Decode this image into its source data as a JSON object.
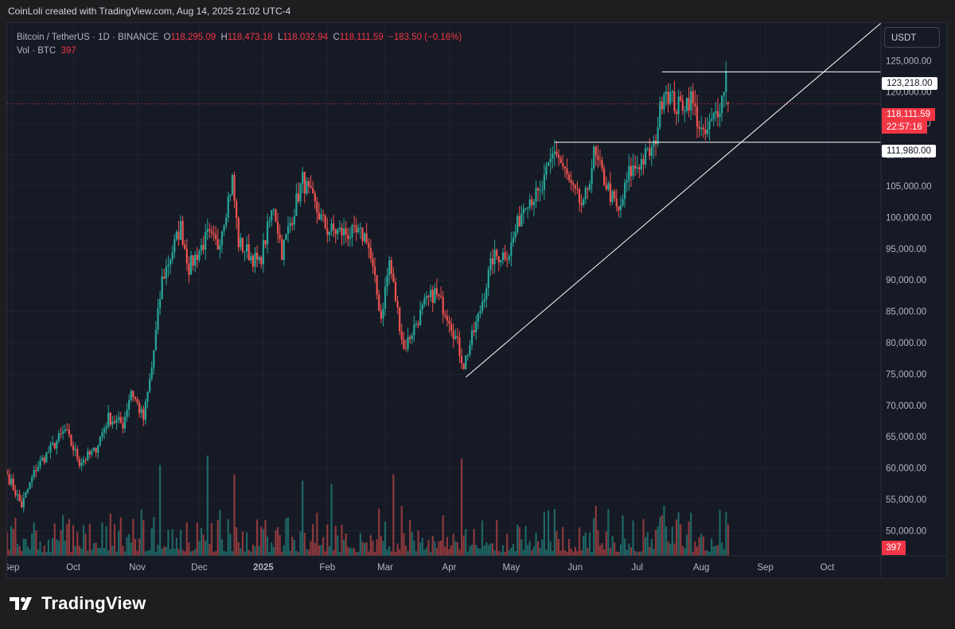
{
  "header": {
    "caption": "CoinLoli created with TradingView.com, Aug 14, 2025 21:02 UTC-4"
  },
  "legend": {
    "symbol": "Bitcoin / TetherUS · 1D · BINANCE",
    "open_label": "O",
    "open": "118,295.09",
    "high_label": "H",
    "high": "118,473.18",
    "low_label": "L",
    "low": "118,032.94",
    "close_label": "C",
    "close": "118,111.59",
    "change": "−183.50 (−0.16%)",
    "vol_label": "Vol · BTC",
    "vol_value": "397"
  },
  "currency_button": "USDT",
  "price_tags": {
    "resistance": "123,218.00",
    "last_price": "118,111.59",
    "countdown": "22:57:16",
    "support": "111,980.00",
    "volume": "397"
  },
  "brand": {
    "name": "TradingView"
  },
  "colors": {
    "up": "#26a69a",
    "down": "#ef5350",
    "background": "#161a25",
    "grid": "#1f2330",
    "axis_text": "#b2b5be",
    "line": "#ffffff",
    "last_price_line": "#f23645"
  },
  "chart_data": {
    "type": "candlestick",
    "symbol": "Bitcoin / TetherUS",
    "interval": "1D",
    "exchange": "BINANCE",
    "y_ticks": [
      "125,000.00",
      "120,000.00",
      "115,000.00",
      "110,000.00",
      "105,000.00",
      "100,000.00",
      "95,000.00",
      "90,000.00",
      "85,000.00",
      "80,000.00",
      "75,000.00",
      "70,000.00",
      "65,000.00",
      "60,000.00",
      "55,000.00",
      "50,000.00"
    ],
    "y_tick_values": [
      125000,
      120000,
      115000,
      110000,
      105000,
      100000,
      95000,
      90000,
      85000,
      80000,
      75000,
      70000,
      65000,
      60000,
      55000,
      50000
    ],
    "ylim": [
      46000,
      131000
    ],
    "x_ticks": [
      {
        "label": "Sep",
        "date": "2024-09-01"
      },
      {
        "label": "Oct",
        "date": "2024-10-01"
      },
      {
        "label": "Nov",
        "date": "2024-11-01"
      },
      {
        "label": "Dec",
        "date": "2024-12-01"
      },
      {
        "label": "2025",
        "date": "2025-01-01"
      },
      {
        "label": "Feb",
        "date": "2025-02-01"
      },
      {
        "label": "Mar",
        "date": "2025-03-01"
      },
      {
        "label": "Apr",
        "date": "2025-04-01"
      },
      {
        "label": "May",
        "date": "2025-05-01"
      },
      {
        "label": "Jun",
        "date": "2025-06-01"
      },
      {
        "label": "Jul",
        "date": "2025-07-01"
      },
      {
        "label": "Aug",
        "date": "2025-08-01"
      },
      {
        "label": "Sep",
        "date": "2025-09-01"
      },
      {
        "label": "Oct",
        "date": "2025-10-01"
      }
    ],
    "xlim": [
      "2024-08-30",
      "2025-10-27"
    ],
    "close_path": [
      [
        "2024-08-30",
        59000
      ],
      [
        "2024-09-06",
        54000
      ],
      [
        "2024-09-13",
        60000
      ],
      [
        "2024-09-20",
        63000
      ],
      [
        "2024-09-27",
        66000
      ],
      [
        "2024-10-04",
        61000
      ],
      [
        "2024-10-11",
        62500
      ],
      [
        "2024-10-18",
        68000
      ],
      [
        "2024-10-25",
        67000
      ],
      [
        "2024-10-29",
        72500
      ],
      [
        "2024-11-04",
        67800
      ],
      [
        "2024-11-08",
        76000
      ],
      [
        "2024-11-13",
        90000
      ],
      [
        "2024-11-22",
        98500
      ],
      [
        "2024-11-26",
        92000
      ],
      [
        "2024-12-05",
        97000
      ],
      [
        "2024-12-10",
        95500
      ],
      [
        "2024-12-17",
        106000
      ],
      [
        "2024-12-20",
        96000
      ],
      [
        "2024-12-30",
        92500
      ],
      [
        "2025-01-06",
        102000
      ],
      [
        "2025-01-10",
        94500
      ],
      [
        "2025-01-20",
        106000
      ],
      [
        "2025-01-27",
        101000
      ],
      [
        "2025-02-01",
        98000
      ],
      [
        "2025-02-10",
        97500
      ],
      [
        "2025-02-20",
        97000
      ],
      [
        "2025-02-27",
        84000
      ],
      [
        "2025-03-03",
        93000
      ],
      [
        "2025-03-10",
        79000
      ],
      [
        "2025-03-20",
        86000
      ],
      [
        "2025-03-25",
        88000
      ],
      [
        "2025-04-01",
        84000
      ],
      [
        "2025-04-08",
        76500
      ],
      [
        "2025-04-15",
        84000
      ],
      [
        "2025-04-22",
        93500
      ],
      [
        "2025-04-30",
        94500
      ],
      [
        "2025-05-08",
        103000
      ],
      [
        "2025-05-15",
        103500
      ],
      [
        "2025-05-22",
        111000
      ],
      [
        "2025-05-31",
        104000
      ],
      [
        "2025-06-05",
        101500
      ],
      [
        "2025-06-10",
        110000
      ],
      [
        "2025-06-17",
        104500
      ],
      [
        "2025-06-22",
        100500
      ],
      [
        "2025-06-27",
        107000
      ],
      [
        "2025-07-03",
        109000
      ],
      [
        "2025-07-09",
        111000
      ],
      [
        "2025-07-14",
        121000
      ],
      [
        "2025-07-20",
        117500
      ],
      [
        "2025-07-27",
        119000
      ],
      [
        "2025-08-02",
        112500
      ],
      [
        "2025-08-06",
        115000
      ],
      [
        "2025-08-11",
        119000
      ],
      [
        "2025-08-13",
        123000
      ],
      [
        "2025-08-14",
        118112
      ]
    ],
    "volume_peaks": [
      [
        "2024-11-12",
        60500
      ],
      [
        "2024-12-05",
        62000
      ],
      [
        "2024-12-18",
        59000
      ],
      [
        "2025-01-20",
        58000
      ],
      [
        "2025-02-03",
        57500
      ],
      [
        "2025-03-05",
        59000
      ],
      [
        "2025-04-07",
        61500
      ],
      [
        "2025-05-22",
        53500
      ],
      [
        "2025-07-14",
        54000
      ],
      [
        "2025-08-14",
        51000
      ]
    ],
    "volume_axis_note": "volume drawn in lower pane, same time axis",
    "drawings": {
      "resistance_level": {
        "value": 123218.0,
        "from": "2025-07-13",
        "to": "2025-10-27"
      },
      "support_level": {
        "value": 111980.0,
        "from": "2025-05-22",
        "to": "2025-10-27"
      },
      "trendline": {
        "from": [
          "2025-04-09",
          74500
        ],
        "to": [
          "2025-10-27",
          131000
        ]
      },
      "last_price_line": {
        "value": 118111.59
      }
    }
  }
}
